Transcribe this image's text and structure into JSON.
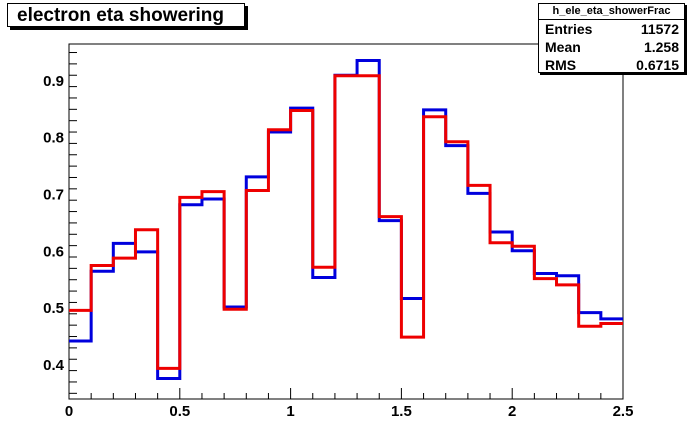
{
  "title": "electron eta showering",
  "stats": {
    "name": "h_ele_eta_showerFrac",
    "rows": [
      {
        "label": "Entries",
        "value": "11572"
      },
      {
        "label": "Mean",
        "value": "1.258"
      },
      {
        "label": "RMS",
        "value": "0.6715"
      }
    ]
  },
  "colors": {
    "blue": "#0000dd",
    "red": "#ee0000"
  },
  "chart_data": {
    "type": "line",
    "style": "histogram-step",
    "title": "electron eta showering",
    "xlim": [
      0,
      2.5
    ],
    "ylim": [
      0.34,
      0.965
    ],
    "xticks": [
      0,
      0.5,
      1,
      1.5,
      2,
      2.5
    ],
    "xtick_labels": [
      "0",
      "0.5",
      "1",
      "1.5",
      "2",
      "2.5"
    ],
    "yticks": [
      0.4,
      0.5,
      0.6,
      0.7,
      0.8,
      0.9
    ],
    "ytick_labels": [
      "0.4",
      "0.5",
      "0.6",
      "0.7",
      "0.8",
      "0.9"
    ],
    "bin_edges": [
      0,
      0.1,
      0.2,
      0.3,
      0.4,
      0.5,
      0.6,
      0.7,
      0.8,
      0.9,
      1.0,
      1.1,
      1.2,
      1.3,
      1.4,
      1.5,
      1.6,
      1.7,
      1.8,
      1.9,
      2.0,
      2.1,
      2.2,
      2.3,
      2.4,
      2.5
    ],
    "series": [
      {
        "color": "#0000dd",
        "values": [
          0.442,
          0.565,
          0.614,
          0.599,
          0.376,
          0.682,
          0.692,
          0.502,
          0.731,
          0.81,
          0.852,
          0.554,
          0.91,
          0.936,
          0.654,
          0.517,
          0.849,
          0.786,
          0.702,
          0.634,
          0.601,
          0.561,
          0.557,
          0.492,
          0.481
        ]
      },
      {
        "color": "#ee0000",
        "values": [
          0.496,
          0.575,
          0.588,
          0.638,
          0.394,
          0.695,
          0.705,
          0.498,
          0.707,
          0.814,
          0.848,
          0.572,
          0.909,
          0.909,
          0.661,
          0.449,
          0.837,
          0.793,
          0.716,
          0.615,
          0.609,
          0.552,
          0.541,
          0.468,
          0.473
        ]
      }
    ]
  }
}
